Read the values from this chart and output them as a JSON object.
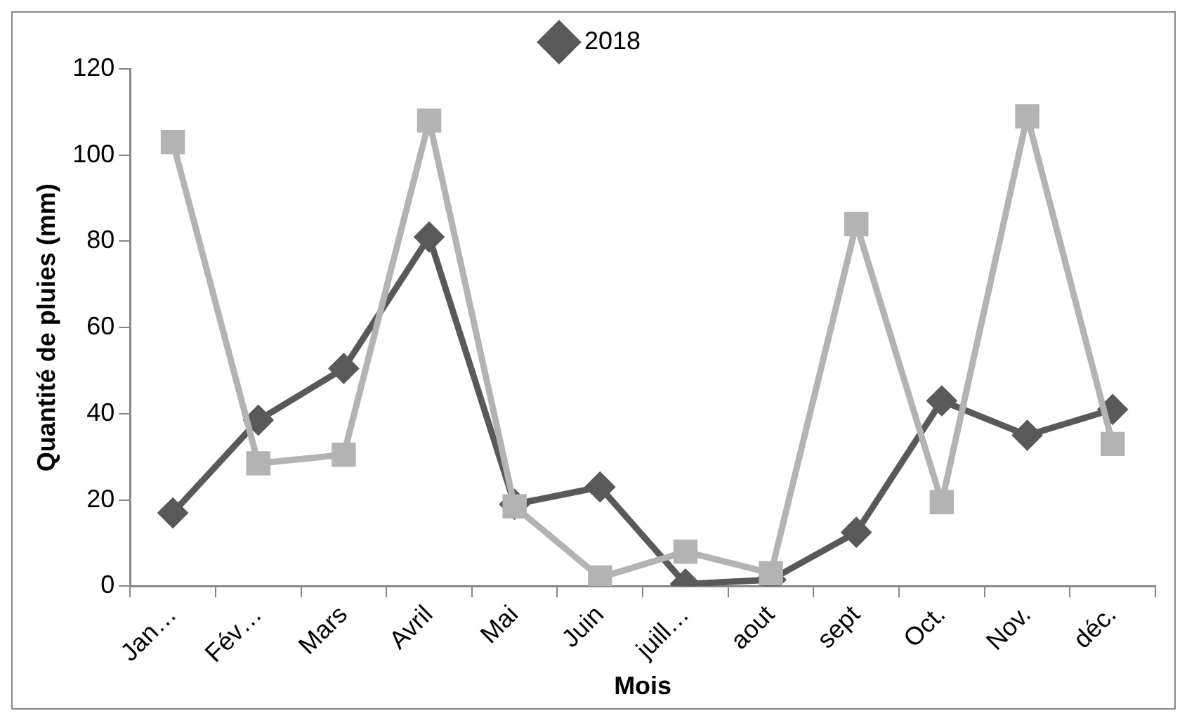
{
  "chart_data": {
    "type": "line",
    "xlabel": "Mois",
    "ylabel": "Quantité de pluies (mm)",
    "categories": [
      "Jan…",
      "Fév…",
      "Mars",
      "Avril",
      "Mai",
      "Juin",
      "juill…",
      "aout",
      "sept",
      "Oct.",
      "Nov.",
      "déc."
    ],
    "series": [
      {
        "name": "2018",
        "color": "#595959",
        "marker": "diamond",
        "values": [
          17,
          38.5,
          50.5,
          81,
          19,
          23,
          0.5,
          1.5,
          12.5,
          43,
          35,
          41
        ]
      },
      {
        "color": "#b3b3b3",
        "marker": "square",
        "values": [
          103,
          28.5,
          30.5,
          108,
          18.5,
          2,
          8,
          3,
          84,
          19.5,
          109,
          33
        ]
      }
    ],
    "ylim": [
      0,
      120
    ],
    "yticks": [
      0,
      20,
      40,
      60,
      80,
      100,
      120
    ],
    "grid": false,
    "legend": "top",
    "line_style": "solid"
  }
}
